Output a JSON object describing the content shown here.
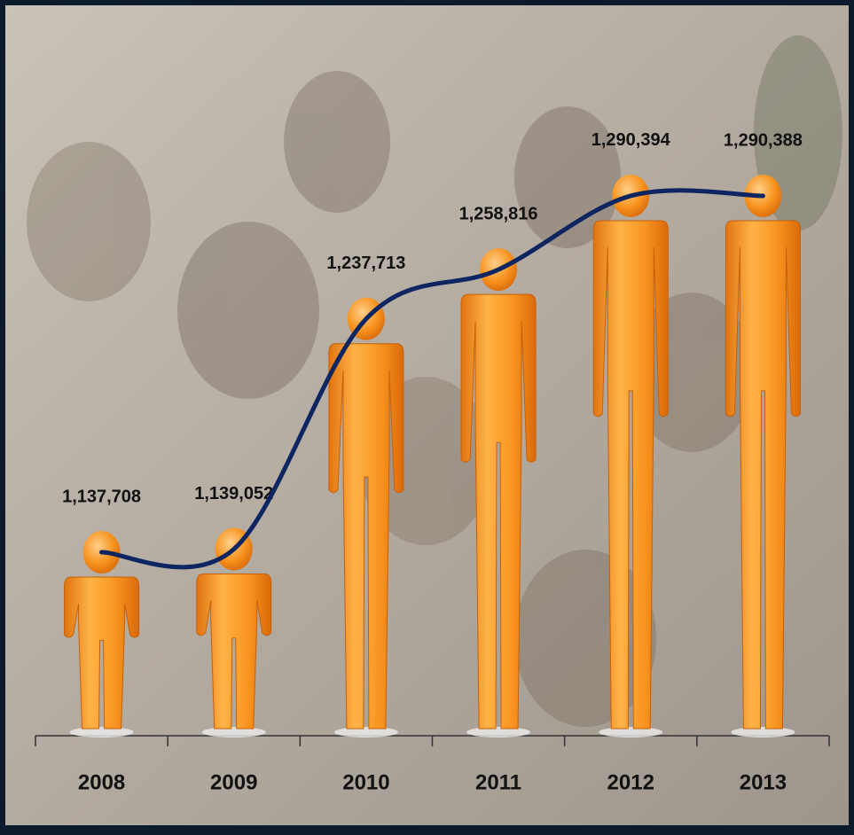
{
  "chart_data": {
    "type": "pictograph",
    "categories": [
      "2008",
      "2009",
      "2010",
      "2011",
      "2012",
      "2013"
    ],
    "values": [
      1137708,
      1139052,
      1237713,
      1258816,
      1290394,
      1290388
    ],
    "value_labels": [
      "1,137,708",
      "1,139,052",
      "1,237,713",
      "1,258,816",
      "1,290,394",
      "1,290,388"
    ],
    "color": "#f7931e",
    "line_color": "#0d2560",
    "ylim": [
      1050000,
      1350000
    ]
  }
}
